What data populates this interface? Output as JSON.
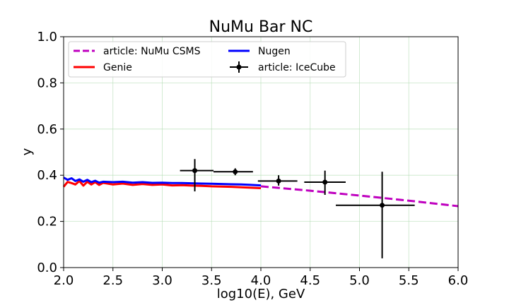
{
  "chart_data": {
    "type": "line",
    "title": "NuMu Bar NC",
    "xlabel": "log10(E), GeV",
    "ylabel": "y",
    "xlim": [
      2.0,
      6.0
    ],
    "ylim": [
      0.0,
      1.0
    ],
    "xticks": [
      "2.0",
      "2.5",
      "3.0",
      "3.5",
      "4.0",
      "4.5",
      "5.0",
      "5.5",
      "6.0"
    ],
    "yticks": [
      "0.0",
      "0.2",
      "0.4",
      "0.6",
      "0.8",
      "1.0"
    ],
    "grid": true,
    "legend_position": "top-left",
    "series": [
      {
        "name": "article: NuMu CSMS",
        "style": "dashed",
        "color": "#bf00bf",
        "x": [
          4.0,
          4.5,
          5.0,
          5.5,
          6.0
        ],
        "y": [
          0.352,
          0.333,
          0.312,
          0.29,
          0.266
        ]
      },
      {
        "name": "Genie",
        "style": "solid",
        "color": "#ff0000",
        "x": [
          2.0,
          2.04,
          2.08,
          2.12,
          2.16,
          2.2,
          2.24,
          2.28,
          2.32,
          2.36,
          2.4,
          2.5,
          2.6,
          2.7,
          2.8,
          2.9,
          3.0,
          3.1,
          3.2,
          3.3,
          3.4,
          3.5,
          3.6,
          3.7,
          3.8,
          3.9,
          4.0
        ],
        "y": [
          0.35,
          0.371,
          0.366,
          0.36,
          0.375,
          0.355,
          0.372,
          0.36,
          0.37,
          0.358,
          0.367,
          0.36,
          0.364,
          0.358,
          0.362,
          0.358,
          0.36,
          0.356,
          0.357,
          0.355,
          0.354,
          0.352,
          0.351,
          0.35,
          0.348,
          0.346,
          0.344
        ]
      },
      {
        "name": "Nugen",
        "style": "solid",
        "color": "#0000ff",
        "x": [
          2.0,
          2.04,
          2.08,
          2.12,
          2.16,
          2.2,
          2.24,
          2.28,
          2.32,
          2.36,
          2.4,
          2.5,
          2.6,
          2.7,
          2.8,
          2.9,
          3.0,
          3.1,
          3.2,
          3.3,
          3.4,
          3.5,
          3.6,
          3.7,
          3.8,
          3.9,
          4.0
        ],
        "y": [
          0.39,
          0.38,
          0.387,
          0.375,
          0.382,
          0.372,
          0.38,
          0.37,
          0.376,
          0.368,
          0.372,
          0.37,
          0.372,
          0.368,
          0.37,
          0.367,
          0.368,
          0.366,
          0.366,
          0.365,
          0.364,
          0.363,
          0.362,
          0.361,
          0.36,
          0.358,
          0.356
        ]
      },
      {
        "name": "article: IceCube",
        "style": "errorbar",
        "color": "#000000",
        "points": [
          {
            "x": 3.33,
            "y": 0.42,
            "xlo": 3.18,
            "xhi": 3.52,
            "ylo": 0.33,
            "yhi": 0.47
          },
          {
            "x": 3.74,
            "y": 0.415,
            "xlo": 3.52,
            "xhi": 3.92,
            "ylo": 0.4,
            "yhi": 0.43
          },
          {
            "x": 4.18,
            "y": 0.375,
            "xlo": 3.97,
            "xhi": 4.37,
            "ylo": 0.355,
            "yhi": 0.4
          },
          {
            "x": 4.65,
            "y": 0.37,
            "xlo": 4.44,
            "xhi": 4.86,
            "ylo": 0.315,
            "yhi": 0.42
          },
          {
            "x": 5.23,
            "y": 0.27,
            "xlo": 4.76,
            "xhi": 5.56,
            "ylo": 0.04,
            "yhi": 0.415
          }
        ]
      }
    ]
  }
}
